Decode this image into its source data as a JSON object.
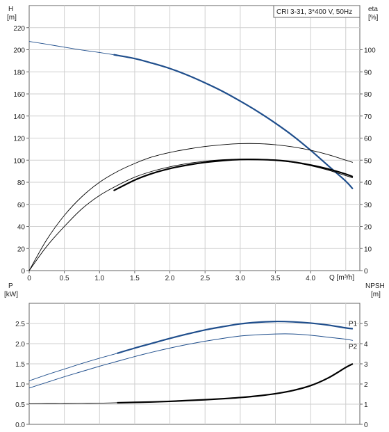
{
  "chart_data": [
    {
      "type": "line",
      "legend_title": "CRI 3-31, 3*400 V, 50Hz",
      "xlabel": "Q [m³/h]",
      "ylabel_left": "H",
      "ylabel_left_unit": "[m]",
      "ylabel_right": "eta",
      "ylabel_right_unit": "[%]",
      "xlim": [
        0,
        4.7
      ],
      "ylim_left": [
        0,
        240
      ],
      "ylim_right": [
        0,
        120
      ],
      "grid": true,
      "x_ticks": [
        "0",
        "0.5",
        "1.0",
        "1.5",
        "2.0",
        "2.5",
        "3.0",
        "3.5",
        "4.0"
      ],
      "y_ticks_left": [
        "0",
        "20",
        "40",
        "60",
        "80",
        "100",
        "120",
        "140",
        "160",
        "180",
        "200",
        "220"
      ],
      "y_ticks_right": [
        "0",
        "10",
        "20",
        "30",
        "40",
        "50",
        "60",
        "70",
        "80",
        "90",
        "100"
      ],
      "series": [
        {
          "axis": "left",
          "color": "#1f4e8c",
          "x": [
            0,
            0.25,
            0.5,
            0.75,
            1.0,
            1.2,
            1.5,
            1.75,
            2.0,
            2.25,
            2.5,
            2.75,
            3.0,
            3.25,
            3.5,
            3.75,
            4.0,
            4.25,
            4.5,
            4.6
          ],
          "y": [
            207.5,
            205,
            202.3,
            199.7,
            197.5,
            195.5,
            192,
            187.8,
            183,
            177,
            170,
            162.3,
            153.5,
            144,
            133.5,
            122,
            109,
            95,
            81,
            74
          ],
          "highlight_from": 1.2
        },
        {
          "axis": "right",
          "color": "#000000",
          "x": [
            0,
            0.25,
            0.5,
            0.75,
            1.0,
            1.25,
            1.5,
            1.75,
            2.0,
            2.25,
            2.5,
            2.75,
            3.0,
            3.25,
            3.5,
            3.75,
            4.0,
            4.25,
            4.5,
            4.6
          ],
          "y": [
            0,
            11,
            20,
            28,
            34,
            38.5,
            42.3,
            45,
            47,
            48.5,
            49.5,
            50.2,
            50.5,
            50.5,
            50,
            49,
            47.5,
            45.5,
            43,
            42
          ],
          "style": "thin"
        },
        {
          "axis": "right",
          "color": "#000000",
          "x": [
            1.2,
            1.5,
            1.75,
            2.0,
            2.25,
            2.5,
            2.75,
            3.0,
            3.25,
            3.5,
            3.75,
            4.0,
            4.25,
            4.5,
            4.6
          ],
          "y": [
            36.2,
            41,
            44,
            46.2,
            47.8,
            49,
            49.8,
            50.3,
            50.3,
            50,
            49.2,
            47.8,
            46,
            43.7,
            42.5
          ],
          "style": "bold"
        },
        {
          "axis": "right",
          "color": "#000000",
          "x": [
            0,
            0.25,
            0.5,
            0.75,
            1.0,
            1.25,
            1.5,
            1.75,
            2.0,
            2.25,
            2.5,
            2.75,
            3.0,
            3.25,
            3.5,
            3.75,
            4.0,
            4.25,
            4.5,
            4.6
          ],
          "y": [
            0,
            14,
            25,
            33.5,
            40,
            44.8,
            48.5,
            51.5,
            53.5,
            55,
            56.2,
            57,
            57.5,
            57.5,
            57,
            56,
            54.5,
            52.5,
            50,
            49
          ],
          "style": "thin"
        }
      ]
    },
    {
      "type": "line",
      "xlim": [
        0,
        4.7
      ],
      "ylabel_left": "P",
      "ylabel_left_unit": "[kW]",
      "ylabel_right": "NPSH",
      "ylabel_right_unit": "[m]",
      "ylim_left": [
        0,
        3.0
      ],
      "ylim_right": [
        0,
        6
      ],
      "grid": true,
      "y_ticks_left": [
        "0.0",
        "0.5",
        "1.0",
        "1.5",
        "2.0",
        "2.5"
      ],
      "y_ticks_right": [
        "0",
        "1",
        "2",
        "3",
        "4",
        "5"
      ],
      "series": [
        {
          "name": "P1",
          "axis": "left",
          "color": "#1f4e8c",
          "x": [
            0,
            0.25,
            0.5,
            0.75,
            1.0,
            1.25,
            1.5,
            1.75,
            2.0,
            2.25,
            2.5,
            2.75,
            3.0,
            3.25,
            3.5,
            3.75,
            4.0,
            4.25,
            4.5,
            4.6
          ],
          "y": [
            1.08,
            1.23,
            1.37,
            1.51,
            1.64,
            1.76,
            1.89,
            2.01,
            2.13,
            2.24,
            2.34,
            2.42,
            2.49,
            2.53,
            2.55,
            2.54,
            2.51,
            2.46,
            2.39,
            2.37
          ],
          "highlight_from": 1.2
        },
        {
          "name": "P2",
          "axis": "left",
          "color": "#1f4e8c",
          "x": [
            0,
            0.25,
            0.5,
            0.75,
            1.0,
            1.25,
            1.5,
            1.75,
            2.0,
            2.25,
            2.5,
            2.75,
            3.0,
            3.25,
            3.5,
            3.75,
            4.0,
            4.25,
            4.5,
            4.6
          ],
          "y": [
            0.9,
            1.04,
            1.18,
            1.31,
            1.44,
            1.56,
            1.68,
            1.79,
            1.89,
            1.98,
            2.06,
            2.13,
            2.19,
            2.22,
            2.24,
            2.24,
            2.21,
            2.16,
            2.11,
            2.08
          ]
        },
        {
          "axis": "right",
          "color": "#000000",
          "x": [
            0,
            0.25,
            0.5,
            0.75,
            1.0,
            1.25,
            1.5,
            1.75,
            2.0,
            2.25,
            2.5,
            2.75,
            3.0,
            3.25,
            3.5,
            3.75,
            4.0,
            4.25,
            4.5,
            4.6
          ],
          "y": [
            1.02,
            1.03,
            1.03,
            1.04,
            1.05,
            1.07,
            1.09,
            1.11,
            1.14,
            1.18,
            1.22,
            1.27,
            1.33,
            1.41,
            1.52,
            1.68,
            1.92,
            2.3,
            2.82,
            3.0
          ],
          "highlight_from": 1.2
        }
      ]
    }
  ]
}
